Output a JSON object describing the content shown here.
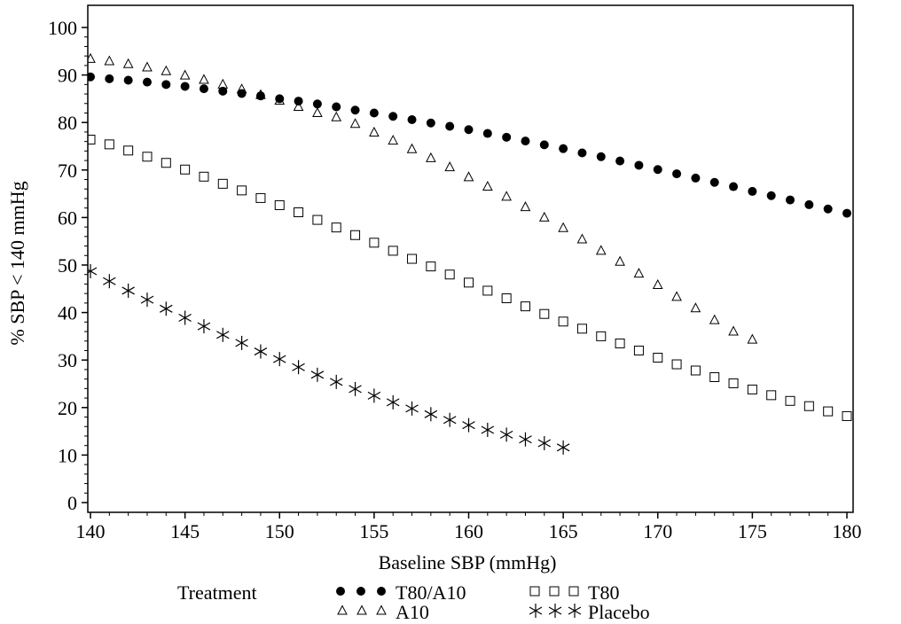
{
  "chart_data": {
    "type": "scatter",
    "xlabel": "Baseline SBP (mmHg)",
    "ylabel": "% SBP < 140 mmHg",
    "xlim": [
      140,
      180
    ],
    "ylim": [
      0,
      100
    ],
    "xticks": [
      140,
      145,
      150,
      155,
      160,
      165,
      170,
      175,
      180
    ],
    "yticks": [
      0,
      10,
      20,
      30,
      40,
      50,
      60,
      70,
      80,
      90,
      100
    ],
    "grid": false,
    "legend": {
      "title": "Treatment",
      "placement": "bottom"
    },
    "series": [
      {
        "name": "T80/A10",
        "marker": "filled-circle",
        "color": "#000000",
        "x": [
          140,
          141,
          142,
          143,
          144,
          145,
          146,
          147,
          148,
          149,
          150,
          151,
          152,
          153,
          154,
          155,
          156,
          157,
          158,
          159,
          160,
          161,
          162,
          163,
          164,
          165,
          166,
          167,
          168,
          169,
          170,
          171,
          172,
          173,
          174,
          175,
          176,
          177,
          178,
          179,
          180
        ],
        "y": [
          89.6,
          89.2,
          88.9,
          88.5,
          88.0,
          87.6,
          87.1,
          86.6,
          86.1,
          85.6,
          85.0,
          84.5,
          83.9,
          83.3,
          82.6,
          82.0,
          81.3,
          80.6,
          79.9,
          79.2,
          78.5,
          77.7,
          76.9,
          76.1,
          75.3,
          74.5,
          73.6,
          72.8,
          71.9,
          71.0,
          70.1,
          69.2,
          68.3,
          67.4,
          66.5,
          65.5,
          64.6,
          63.7,
          62.7,
          61.8,
          60.9
        ]
      },
      {
        "name": "A10",
        "marker": "open-triangle",
        "color": "#000000",
        "x": [
          140,
          141,
          142,
          143,
          144,
          145,
          146,
          147,
          148,
          149,
          150,
          151,
          152,
          153,
          154,
          155,
          156,
          157,
          158,
          159,
          160,
          161,
          162,
          163,
          164,
          165,
          166,
          167,
          168,
          169,
          170,
          171,
          172,
          173,
          174,
          175
        ],
        "y": [
          93.4,
          92.9,
          92.3,
          91.6,
          90.8,
          89.9,
          89.0,
          88.0,
          87.0,
          85.8,
          84.6,
          83.3,
          82.0,
          81.1,
          79.7,
          77.9,
          76.2,
          74.4,
          72.5,
          70.6,
          68.5,
          66.5,
          64.4,
          62.2,
          60.0,
          57.8,
          55.4,
          53.0,
          50.7,
          48.2,
          45.8,
          43.3,
          40.9,
          38.4,
          36.0,
          34.3
        ]
      },
      {
        "name": "T80",
        "marker": "open-square",
        "color": "#000000",
        "x": [
          140,
          141,
          142,
          143,
          144,
          145,
          146,
          147,
          148,
          149,
          150,
          151,
          152,
          153,
          154,
          155,
          156,
          157,
          158,
          159,
          160,
          161,
          162,
          163,
          164,
          165,
          166,
          167,
          168,
          169,
          170,
          171,
          172,
          173,
          174,
          175,
          176,
          177,
          178,
          179,
          180
        ],
        "y": [
          76.4,
          75.4,
          74.1,
          72.8,
          71.5,
          70.1,
          68.6,
          67.1,
          65.7,
          64.1,
          62.6,
          61.1,
          59.5,
          57.9,
          56.3,
          54.7,
          53.0,
          51.3,
          49.7,
          48.0,
          46.3,
          44.6,
          43.0,
          41.3,
          39.7,
          38.1,
          36.6,
          35.0,
          33.5,
          32.0,
          30.5,
          29.1,
          27.8,
          26.4,
          25.1,
          23.8,
          22.6,
          21.4,
          20.3,
          19.2,
          18.2
        ]
      },
      {
        "name": "Placebo",
        "marker": "asterisk",
        "color": "#000000",
        "x": [
          140,
          141,
          142,
          143,
          144,
          145,
          146,
          147,
          148,
          149,
          150,
          151,
          152,
          153,
          154,
          155,
          156,
          157,
          158,
          159,
          160,
          161,
          162,
          163,
          164,
          165
        ],
        "y": [
          48.7,
          46.6,
          44.6,
          42.7,
          40.8,
          38.9,
          37.1,
          35.3,
          33.6,
          31.8,
          30.2,
          28.5,
          26.9,
          25.4,
          23.9,
          22.5,
          21.1,
          19.8,
          18.6,
          17.4,
          16.3,
          15.3,
          14.3,
          13.3,
          12.5,
          11.6
        ]
      }
    ]
  }
}
